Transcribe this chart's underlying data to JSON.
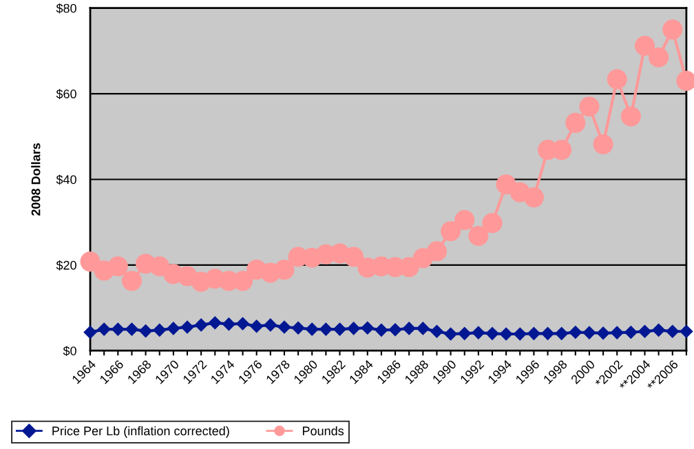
{
  "chart_data": {
    "type": "line",
    "ylabel": "2008 Dollars",
    "categories": [
      "1964",
      null,
      "1966",
      null,
      "1968",
      null,
      "1970",
      null,
      "1972",
      null,
      "1974",
      null,
      "1976",
      null,
      "1978",
      null,
      "1980",
      null,
      "1982",
      null,
      "1984",
      null,
      "1986",
      null,
      "1988",
      null,
      "1990",
      null,
      "1992",
      null,
      "1994",
      null,
      "1996",
      null,
      "1998",
      null,
      "2000",
      null,
      "*2002",
      null,
      "**2004",
      null,
      "**2006",
      null
    ],
    "series": [
      {
        "name": "Price Per Lb (inflation corrected)",
        "color": "#021893",
        "marker": "diamond",
        "values": [
          4.3,
          5.0,
          5.0,
          5.0,
          4.6,
          4.8,
          5.2,
          5.5,
          6.0,
          6.5,
          6.2,
          6.3,
          5.7,
          6.0,
          5.5,
          5.3,
          5.0,
          5.0,
          5.0,
          5.2,
          5.3,
          4.8,
          4.9,
          5.2,
          5.2,
          4.5,
          3.9,
          4.0,
          4.2,
          4.0,
          3.9,
          3.9,
          4.0,
          4.0,
          4.0,
          4.3,
          4.2,
          4.1,
          4.2,
          4.3,
          4.5,
          4.8,
          4.5,
          4.5
        ]
      },
      {
        "name": "Pounds",
        "color": "#ff9999",
        "marker": "circle",
        "values": [
          20.8,
          18.7,
          19.7,
          16.3,
          20.3,
          19.7,
          17.9,
          17.4,
          16.1,
          16.8,
          16.3,
          16.3,
          18.9,
          18.2,
          18.9,
          21.9,
          21.7,
          22.5,
          22.7,
          21.9,
          19.4,
          19.7,
          19.5,
          19.5,
          21.6,
          23.2,
          27.9,
          30.5,
          26.8,
          29.8,
          38.8,
          37.0,
          35.8,
          46.9,
          46.9,
          53.2,
          57.0,
          48.2,
          63.4,
          54.7,
          71.2,
          68.5,
          75.0,
          63.0
        ]
      }
    ],
    "ylim": [
      0,
      80
    ],
    "yticks": [
      {
        "value": 0,
        "label": "$0"
      },
      {
        "value": 20,
        "label": "$20"
      },
      {
        "value": 40,
        "label": "$40"
      },
      {
        "value": 60,
        "label": "$60"
      },
      {
        "value": 80,
        "label": "$80"
      }
    ],
    "grid": "y",
    "legend": "bottom"
  }
}
